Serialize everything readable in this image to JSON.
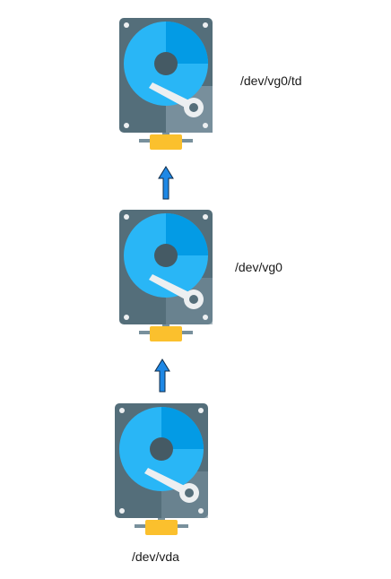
{
  "diagram": {
    "nodes": [
      {
        "id": "td",
        "label": "/dev/vg0/td",
        "icon": "hard-disk-icon"
      },
      {
        "id": "vg0",
        "label": "/dev/vg0",
        "icon": "hard-disk-icon"
      },
      {
        "id": "vda",
        "label": "/dev/vda",
        "icon": "hard-disk-icon"
      }
    ],
    "edges": [
      {
        "from": "vda",
        "to": "vg0",
        "icon": "up-arrow-icon"
      },
      {
        "from": "vg0",
        "to": "td",
        "icon": "up-arrow-icon"
      }
    ]
  },
  "colors": {
    "disk_case": "#546e7a",
    "disk_case_light": "#78909c",
    "platter": "#29b6f6",
    "platter_shade": "#039be5",
    "spindle": "#455a64",
    "arm": "#eceff1",
    "connector": "#fbc02d",
    "arrow": "#1e88e5"
  }
}
